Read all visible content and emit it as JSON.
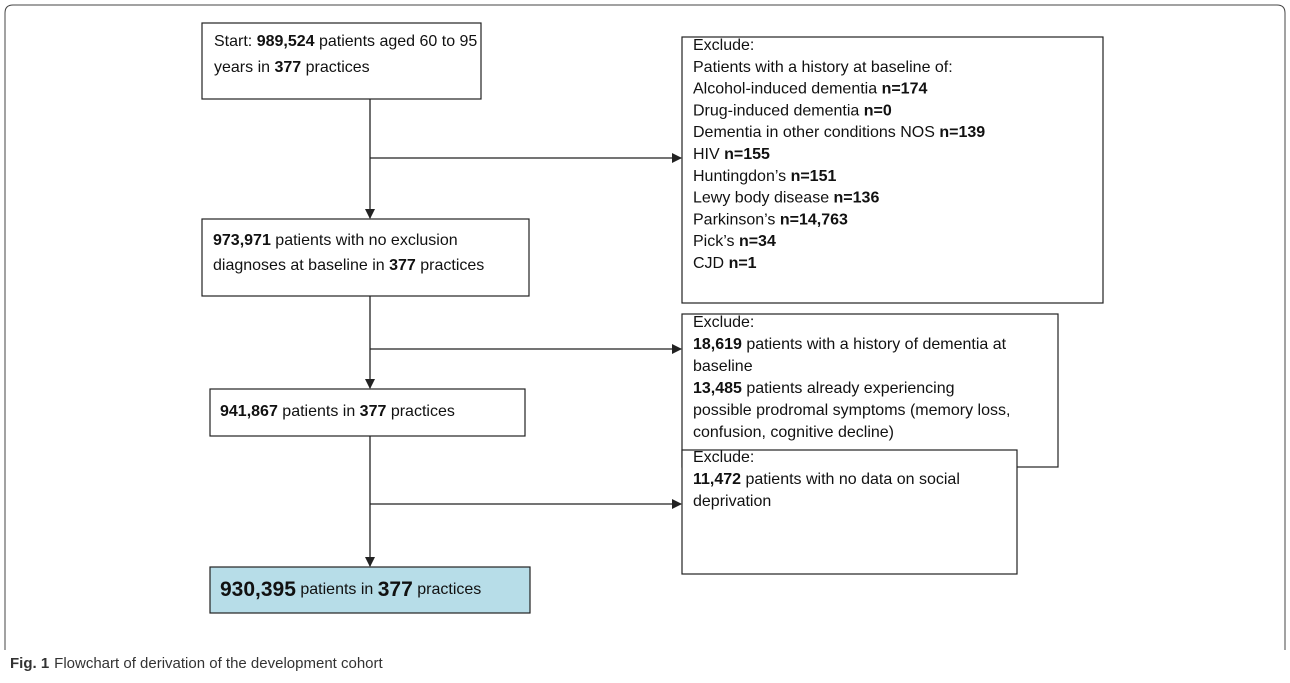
{
  "nodes": [
    {
      "lines": [
        [
          {
            "text": "Start: "
          },
          {
            "bold": "989,524"
          },
          {
            "text": " patients aged 60 to 95"
          }
        ],
        [
          {
            "text": "years in "
          },
          {
            "bold": "377"
          },
          {
            "text": " practices"
          }
        ]
      ]
    },
    {
      "lines": [
        [
          {
            "text": "Exclude:"
          }
        ],
        [
          {
            "text": "Patients with a history at baseline of:"
          }
        ],
        [
          {
            "text": "Alcohol-induced dementia "
          },
          {
            "bold": "n=174"
          }
        ],
        [
          {
            "text": "Drug-induced dementia "
          },
          {
            "bold": "n=0"
          }
        ],
        [
          {
            "text": "Dementia in other conditions NOS "
          },
          {
            "bold": "n=139"
          }
        ],
        [
          {
            "text": "HIV "
          },
          {
            "bold": "n=155"
          }
        ],
        [
          {
            "text": "Huntingdon’s "
          },
          {
            "bold": "n=151"
          }
        ],
        [
          {
            "text": "Lewy body disease "
          },
          {
            "bold": "n=136"
          }
        ],
        [
          {
            "text": "Parkinson’s "
          },
          {
            "bold": "n=14,763"
          }
        ],
        [
          {
            "text": "Pick’s "
          },
          {
            "bold": "n=34"
          }
        ],
        [
          {
            "text": "CJD "
          },
          {
            "bold": "n=1"
          }
        ]
      ]
    },
    {
      "lines": [
        [
          {
            "bold": "973,971"
          },
          {
            "text": " patients with no exclusion"
          }
        ],
        [
          {
            "text": "diagnoses at baseline in "
          },
          {
            "bold": "377"
          },
          {
            "text": " practices"
          }
        ]
      ]
    },
    {
      "lines": [
        [
          {
            "text": "Exclude:"
          }
        ],
        [
          {
            "bold": "18,619"
          },
          {
            "text": " patients with a history of dementia at"
          }
        ],
        [
          {
            "text": "baseline"
          }
        ],
        [
          {
            "bold": "13,485"
          },
          {
            "text": " patients already experiencing"
          }
        ],
        [
          {
            "text": "possible prodromal symptoms (memory loss,"
          }
        ],
        [
          {
            "text": "confusion, cognitive decline)"
          }
        ]
      ]
    },
    {
      "lines": [
        [
          {
            "bold": "941,867"
          },
          {
            "text": " patients in "
          },
          {
            "bold": "377"
          },
          {
            "text": " practices"
          }
        ]
      ]
    },
    {
      "lines": [
        [
          {
            "text": "Exclude:"
          }
        ],
        [
          {
            "bold": "11,472"
          },
          {
            "text": " patients with no data on social"
          }
        ],
        [
          {
            "text": "deprivation"
          }
        ]
      ]
    },
    {
      "lines": [
        [
          {
            "bold": "930,395"
          },
          {
            "text": " patients in "
          },
          {
            "bold": "377"
          },
          {
            "text": " practices"
          }
        ]
      ]
    }
  ],
  "caption": {
    "label": "Fig. 1",
    "text": "Flowchart of derivation of the development cohort"
  }
}
